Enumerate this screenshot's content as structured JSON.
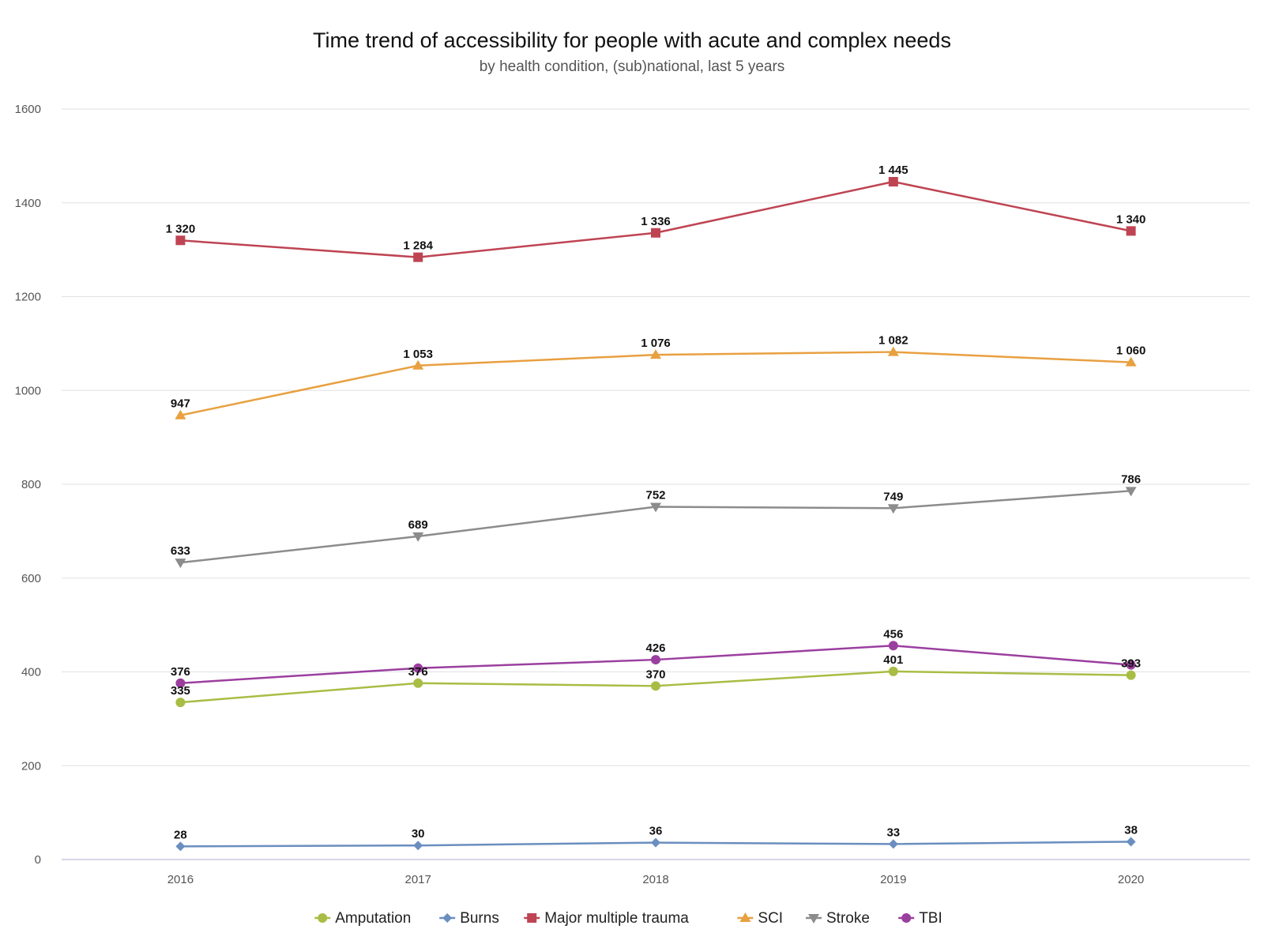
{
  "chart_data": {
    "type": "line",
    "title": "Time trend of accessibility for people with acute and complex needs",
    "subtitle": "by health condition, (sub)national, last 5 years",
    "xlabel": "",
    "ylabel": "",
    "categories": [
      "2016",
      "2017",
      "2018",
      "2019",
      "2020"
    ],
    "ylim": [
      0,
      1600
    ],
    "yticks": [
      0,
      200,
      400,
      600,
      800,
      1000,
      1200,
      1400,
      1600
    ],
    "grid": true,
    "legend_position": "bottom",
    "series": [
      {
        "name": "Amputation",
        "color": "#a8bd44",
        "marker": "circle",
        "values": [
          335,
          376,
          370,
          401,
          393
        ],
        "labels": [
          "335",
          "376",
          "370",
          "401",
          "393"
        ]
      },
      {
        "name": "Burns",
        "color": "#6a8ebf",
        "marker": "diamond",
        "values": [
          28,
          30,
          36,
          33,
          38
        ],
        "labels": [
          "28",
          "30",
          "36",
          "33",
          "38"
        ]
      },
      {
        "name": "Major multiple trauma",
        "color": "#bf4453",
        "marker": "square",
        "values": [
          1320,
          1284,
          1336,
          1445,
          1340
        ],
        "labels": [
          "1 320",
          "1 284",
          "1 336",
          "1 445",
          "1 340"
        ]
      },
      {
        "name": "SCI",
        "color": "#e8a040",
        "marker": "triangle",
        "values": [
          947,
          1053,
          1076,
          1082,
          1060
        ],
        "labels": [
          "947",
          "1 053",
          "1 076",
          "1 082",
          "1 060"
        ]
      },
      {
        "name": "Stroke",
        "color": "#8c8c8c",
        "marker": "triangle-down",
        "values": [
          633,
          689,
          752,
          749,
          786
        ],
        "labels": [
          "633",
          "689",
          "752",
          "749",
          "786"
        ]
      },
      {
        "name": "TBI",
        "color": "#9b3f9f",
        "marker": "circle",
        "values": [
          376,
          408,
          426,
          456,
          415
        ],
        "labels": [
          "376",
          "",
          "426",
          "456",
          ""
        ]
      }
    ]
  }
}
